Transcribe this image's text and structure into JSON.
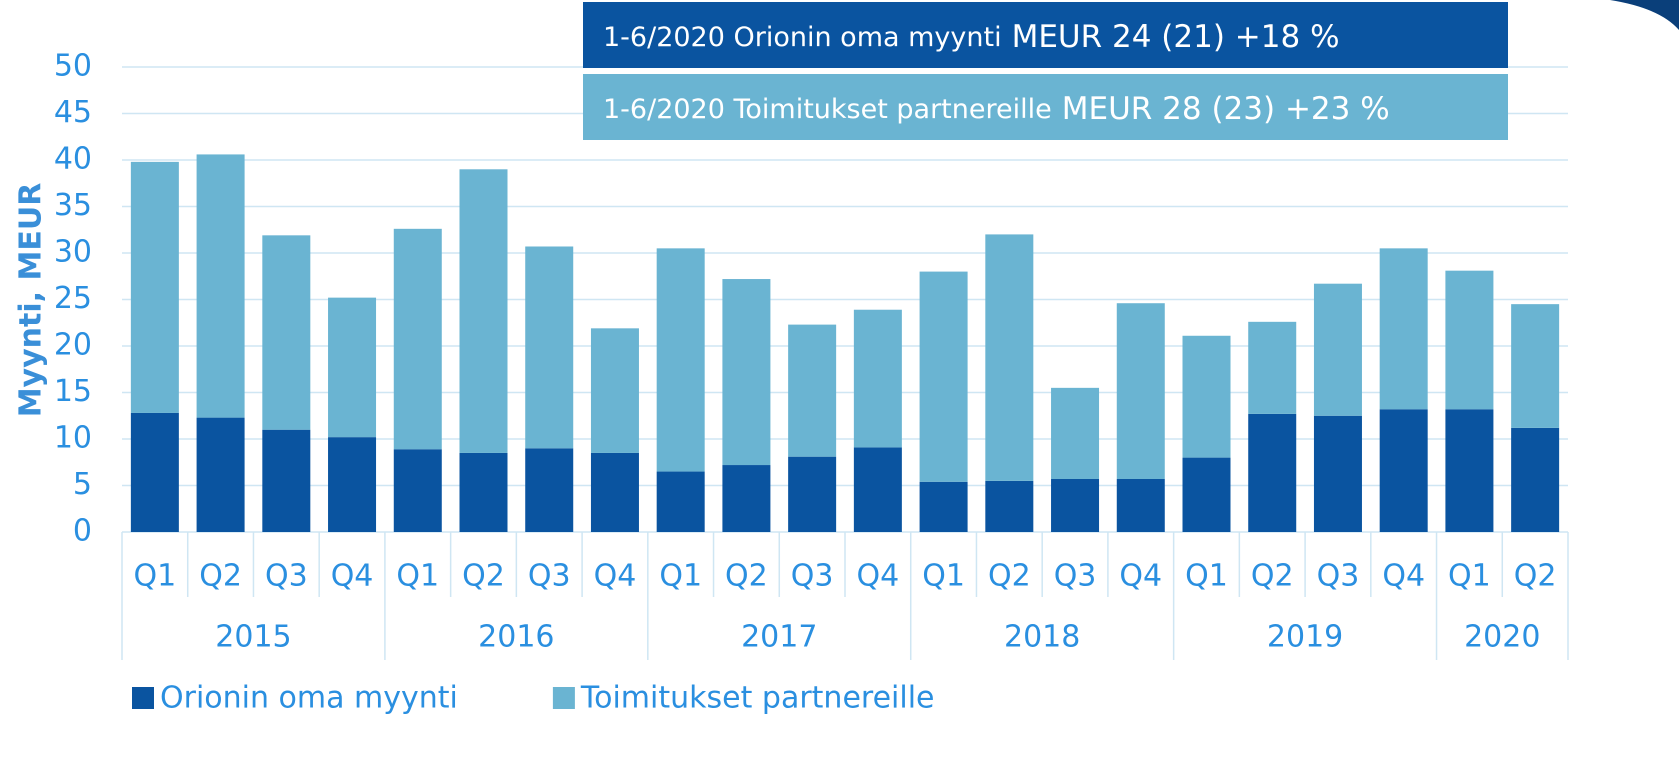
{
  "chart_data": {
    "type": "stacked_bar",
    "y_label": "Myynti, MEUR",
    "categories": [
      "Q1",
      "Q2",
      "Q3",
      "Q4",
      "Q1",
      "Q2",
      "Q3",
      "Q4",
      "Q1",
      "Q2",
      "Q3",
      "Q4",
      "Q1",
      "Q2",
      "Q3",
      "Q4",
      "Q1",
      "Q2",
      "Q3",
      "Q4",
      "Q1",
      "Q2"
    ],
    "category_years": [
      "2015",
      "2015",
      "2015",
      "2015",
      "2016",
      "2016",
      "2016",
      "2016",
      "2017",
      "2017",
      "2017",
      "2017",
      "2018",
      "2018",
      "2018",
      "2018",
      "2019",
      "2019",
      "2019",
      "2019",
      "2020",
      "2020"
    ],
    "series": [
      {
        "name": "Orionin oma myynti",
        "color": "#0a54a0",
        "values": [
          12.8,
          12.3,
          11.0,
          10.2,
          8.9,
          8.5,
          9.0,
          8.5,
          6.5,
          7.2,
          8.1,
          9.1,
          5.4,
          5.5,
          5.7,
          5.7,
          8.0,
          12.7,
          12.5,
          13.2,
          13.2,
          11.2
        ]
      },
      {
        "name": "Toimitukset partnereille",
        "color": "#6ab4d2",
        "values": [
          27.0,
          28.3,
          20.9,
          15.0,
          23.7,
          30.5,
          21.7,
          13.4,
          24.0,
          20.0,
          14.2,
          14.8,
          22.6,
          26.5,
          9.8,
          18.9,
          13.1,
          9.9,
          14.2,
          17.3,
          14.9,
          13.3
        ]
      }
    ],
    "ylim": [
      0,
      50
    ],
    "yticks": [
      0,
      5,
      10,
      15,
      20,
      25,
      30,
      35,
      40,
      45,
      50
    ],
    "grid": true,
    "legend": "bottom-left",
    "annotations": [
      {
        "text": "1-6/2020 Orionin oma myynti",
        "highlight": "MEUR 24 (21) +18 %",
        "color": "#0a54a0"
      },
      {
        "text": "1-6/2020 Toimitukset partnereille",
        "highlight": "MEUR 28 (23) +23 %",
        "color": "#6ab4d2"
      }
    ]
  }
}
